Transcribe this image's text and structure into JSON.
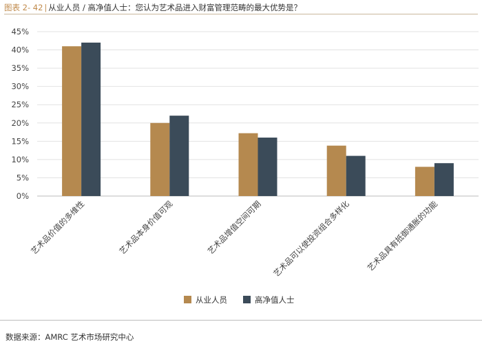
{
  "header": {
    "figure_label": "图表 2- 42",
    "separator": "|",
    "title": "从业人员 / 高净值人士：您认为艺术品进入财富管理范畴的最大优势是？"
  },
  "footer": {
    "source": "数据来源：AMRC 艺术市场研究中心"
  },
  "chart_data": {
    "type": "bar",
    "title": "从业人员 / 高净值人士：您认为艺术品进入财富管理范畴的最大优势是？",
    "xlabel": "",
    "ylabel": "",
    "ylim": [
      0,
      45
    ],
    "yticks": [
      "0%",
      "5%",
      "10%",
      "15%",
      "20%",
      "25%",
      "30%",
      "35%",
      "40%",
      "45%"
    ],
    "grid": true,
    "legend_position": "bottom",
    "categories": [
      "艺术品价值的多维性",
      "艺术品本身价值可观",
      "艺术品增值空间可期",
      "艺术品可以使投资组合多样化",
      "艺术品具有抵御通胀的功能"
    ],
    "series": [
      {
        "name": "从业人员",
        "color": "#b5894f",
        "values": [
          41,
          20,
          17.2,
          13.8,
          8
        ]
      },
      {
        "name": "高净值人士",
        "color": "#3b4b59",
        "values": [
          42,
          22,
          16,
          11,
          9
        ]
      }
    ]
  }
}
